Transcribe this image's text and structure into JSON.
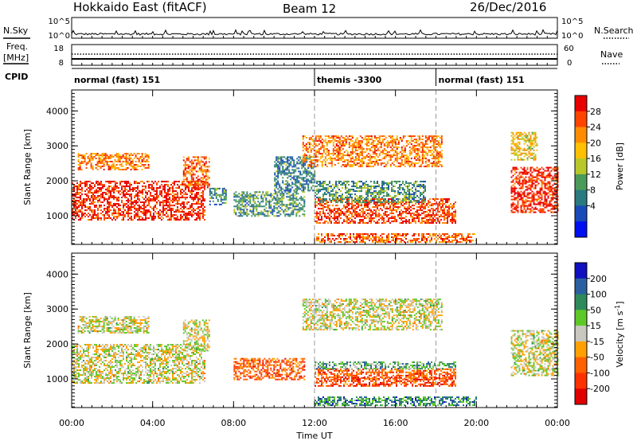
{
  "header": {
    "station": "Hokkaido East (fitACF)",
    "beam": "Beam 12",
    "date": "26/Dec/2016"
  },
  "panels_top": {
    "nsky_label": "N.Sky",
    "nsearch_label": "N.Search",
    "nsky_ticks": [
      "10^5",
      "10^0"
    ],
    "nsearch_ticks": [
      "10^5",
      "10^0"
    ],
    "freq_label": "Freq.",
    "freq_unit": "[MHz]",
    "freq_ticks": [
      "18",
      "8"
    ],
    "nave_label": "Nave",
    "nave_ticks": [
      "60",
      "0"
    ],
    "cpid_label": "CPID",
    "cpid_modes": [
      {
        "label": "normal (fast) 151",
        "start_h": 0
      },
      {
        "label": "themis -3300",
        "start_h": 12
      },
      {
        "label": "normal (fast) 151",
        "start_h": 18
      }
    ]
  },
  "axes": {
    "ylabel": "Slant Range [km]",
    "xlabel": "Time UT",
    "x_ticks": [
      "00:00",
      "04:00",
      "08:00",
      "12:00",
      "16:00",
      "20:00",
      "00:00"
    ],
    "y_ticks": [
      "1000",
      "2000",
      "3000",
      "4000"
    ]
  },
  "power_scale": {
    "label": "Power [dB]",
    "ticks": [
      "28",
      "24",
      "20",
      "16",
      "12",
      "8",
      "4"
    ],
    "colors": [
      "#e80000",
      "#ff4400",
      "#ff8c00",
      "#ffc000",
      "#b8c828",
      "#4a9a5a",
      "#2a7a80",
      "#1a4ab8",
      "#0010f0"
    ]
  },
  "velocity_scale": {
    "label": "Velocity [m s",
    "label_sup": "-1",
    "label_end": "]",
    "ticks": [
      "200",
      "100",
      "50",
      "15",
      "-15",
      "-50",
      "-100",
      "-200"
    ],
    "colors": [
      "#1010c0",
      "#2a60a0",
      "#2e8a5a",
      "#5ec828",
      "#c8c8c0",
      "#ffa000",
      "#ff6000",
      "#ff3000",
      "#e00000"
    ]
  },
  "chart_data": [
    {
      "type": "heatmap",
      "name": "Power",
      "x_range_h": [
        0,
        24
      ],
      "ylim_km": [
        180,
        4600
      ],
      "regions": [
        {
          "t0": 0.0,
          "t1": 6.6,
          "r0": 900,
          "r1": 2000,
          "level": 0.9
        },
        {
          "t0": 0.3,
          "t1": 3.8,
          "r0": 2300,
          "r1": 2800,
          "level": 0.75
        },
        {
          "t0": 5.5,
          "t1": 6.8,
          "r0": 1800,
          "r1": 2700,
          "level": 0.8
        },
        {
          "t0": 6.8,
          "t1": 7.6,
          "r0": 1300,
          "r1": 1800,
          "level": 0.3
        },
        {
          "t0": 8.0,
          "t1": 11.5,
          "r0": 1000,
          "r1": 1700,
          "level": 0.35
        },
        {
          "t0": 10.0,
          "t1": 12.0,
          "r0": 1700,
          "r1": 2700,
          "level": 0.3
        },
        {
          "t0": 11.4,
          "t1": 18.3,
          "r0": 2400,
          "r1": 3300,
          "level": 0.75
        },
        {
          "t0": 12.0,
          "t1": 19.0,
          "r0": 800,
          "r1": 1500,
          "level": 0.85
        },
        {
          "t0": 12.0,
          "t1": 17.5,
          "r0": 1400,
          "r1": 2000,
          "level": 0.35
        },
        {
          "t0": 12.0,
          "t1": 20.0,
          "r0": 250,
          "r1": 500,
          "level": 0.8
        },
        {
          "t0": 21.7,
          "t1": 24.0,
          "r0": 1100,
          "r1": 2400,
          "level": 0.9
        },
        {
          "t0": 21.7,
          "t1": 23.0,
          "r0": 2600,
          "r1": 3400,
          "level": 0.6
        }
      ]
    },
    {
      "type": "heatmap",
      "name": "Velocity",
      "x_range_h": [
        0,
        24
      ],
      "ylim_km": [
        180,
        4600
      ],
      "regions": [
        {
          "t0": 0.0,
          "t1": 6.6,
          "r0": 900,
          "r1": 2000,
          "level": 0.5
        },
        {
          "t0": 0.3,
          "t1": 3.8,
          "r0": 2300,
          "r1": 2800,
          "level": 0.5
        },
        {
          "t0": 5.5,
          "t1": 6.8,
          "r0": 1800,
          "r1": 2700,
          "level": 0.5
        },
        {
          "t0": 8.0,
          "t1": 11.5,
          "r0": 1000,
          "r1": 1600,
          "level": 0.25
        },
        {
          "t0": 11.4,
          "t1": 18.3,
          "r0": 2400,
          "r1": 3300,
          "level": 0.5
        },
        {
          "t0": 12.0,
          "t1": 19.0,
          "r0": 1000,
          "r1": 1300,
          "level": 0.25
        },
        {
          "t0": 12.0,
          "t1": 19.0,
          "r0": 800,
          "r1": 1050,
          "level": 0.2
        },
        {
          "t0": 12.0,
          "t1": 19.0,
          "r0": 1300,
          "r1": 1500,
          "level": 0.65
        },
        {
          "t0": 12.0,
          "t1": 20.0,
          "r0": 250,
          "r1": 500,
          "level": 0.75
        },
        {
          "t0": 21.7,
          "t1": 24.0,
          "r0": 1100,
          "r1": 2400,
          "level": 0.5
        }
      ]
    }
  ]
}
